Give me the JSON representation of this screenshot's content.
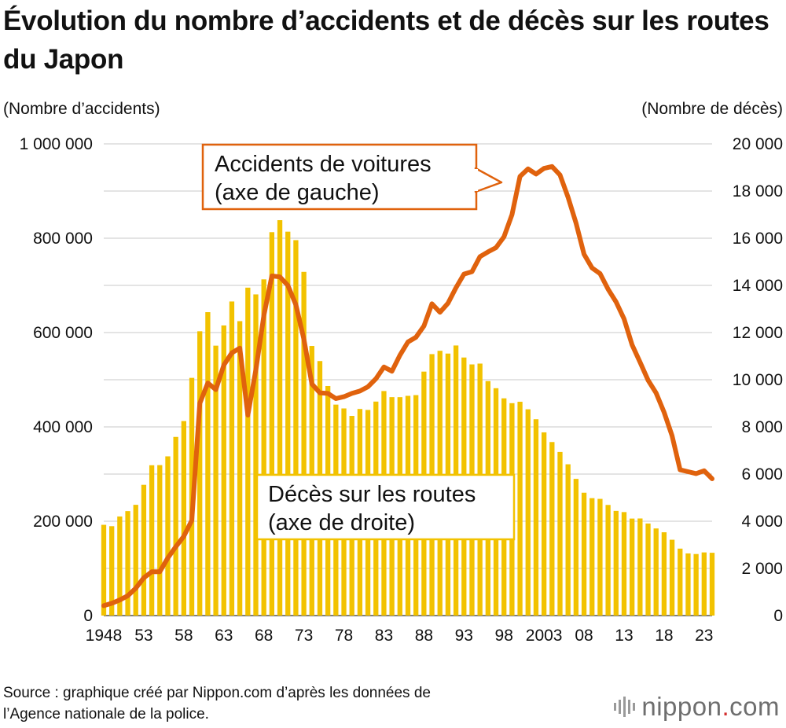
{
  "header": {
    "title": "Évolution du nombre d’accidents et de décès sur les routes du Japon",
    "left_axis_unit": "(Nombre d’accidents)",
    "right_axis_unit": "(Nombre de décès)"
  },
  "footer": {
    "source_line1": "Source : graphique créé par Nippon.com d’après les données de",
    "source_line2": "l’Agence nationale de la police.",
    "logo_main": "nippon",
    "logo_dot": ".",
    "logo_suffix": "com"
  },
  "colors": {
    "bars": "#f2c200",
    "line": "#e0620d",
    "grid": "#c8c8c8",
    "label_border_accidents": "#e0620d",
    "label_border_deaths": "#f2c200"
  },
  "chart_data": {
    "type": "bar+line",
    "x_tick_labels": [
      "1948",
      "53",
      "58",
      "63",
      "68",
      "73",
      "78",
      "83",
      "88",
      "93",
      "98",
      "2003",
      "08",
      "13",
      "18",
      "23"
    ],
    "x_tick_years": [
      1948,
      1953,
      1958,
      1963,
      1968,
      1973,
      1978,
      1983,
      1988,
      1993,
      1998,
      2003,
      2008,
      2013,
      2018,
      2023
    ],
    "left_axis": {
      "min": 0,
      "max": 1000000,
      "ticks": [
        "0",
        "200 000",
        "400 000",
        "600 000",
        "800 000",
        "1 000 000"
      ],
      "tick_values": [
        0,
        200000,
        400000,
        600000,
        800000,
        1000000
      ]
    },
    "right_axis": {
      "min": 0,
      "max": 20000,
      "ticks": [
        "0",
        "2 000",
        "4 000",
        "6 000",
        "8 000",
        "10 000",
        "12 000",
        "14 000",
        "16 000",
        "18 000",
        "20 000"
      ],
      "tick_values": [
        0,
        2000,
        4000,
        6000,
        8000,
        10000,
        12000,
        14000,
        16000,
        18000,
        20000
      ]
    },
    "grid": true,
    "years": [
      1948,
      1949,
      1950,
      1951,
      1952,
      1953,
      1954,
      1955,
      1956,
      1957,
      1958,
      1959,
      1960,
      1961,
      1962,
      1963,
      1964,
      1965,
      1966,
      1967,
      1968,
      1969,
      1970,
      1971,
      1972,
      1973,
      1974,
      1975,
      1976,
      1977,
      1978,
      1979,
      1980,
      1981,
      1982,
      1983,
      1984,
      1985,
      1986,
      1987,
      1988,
      1989,
      1990,
      1991,
      1992,
      1993,
      1994,
      1995,
      1996,
      1997,
      1998,
      1999,
      2000,
      2001,
      2002,
      2003,
      2004,
      2005,
      2006,
      2007,
      2008,
      2009,
      2010,
      2011,
      2012,
      2013,
      2014,
      2015,
      2016,
      2017,
      2018,
      2019,
      2020,
      2021,
      2022,
      2023,
      2024
    ],
    "series": [
      {
        "name": "Décès sur les routes",
        "label_line2": "(axe de droite)",
        "axis": "right",
        "kind": "bar",
        "values": [
          3848,
          3790,
          4202,
          4429,
          4696,
          5544,
          6374,
          6379,
          6751,
          7575,
          8248,
          10079,
          12055,
          12865,
          11445,
          12301,
          13318,
          12484,
          13904,
          13618,
          14256,
          16257,
          16765,
          16278,
          15918,
          14574,
          11432,
          10792,
          9734,
          8945,
          8783,
          8466,
          8760,
          8719,
          9073,
          9520,
          9262,
          9261,
          9317,
          9347,
          10344,
          11086,
          11227,
          11109,
          11452,
          10942,
          10649,
          10684,
          9942,
          9640,
          9211,
          9006,
          9066,
          8747,
          8326,
          7768,
          7358,
          6937,
          6415,
          5796,
          5209,
          4979,
          4948,
          4691,
          4438,
          4388,
          4113,
          4117,
          3904,
          3694,
          3532,
          3215,
          2839,
          2636,
          2610,
          2678,
          2663
        ]
      },
      {
        "name": "Accidents de voitures",
        "label_line2": "(axe de gauche)",
        "axis": "left",
        "kind": "line",
        "values": [
          21000,
          26000,
          33000,
          42000,
          58000,
          80000,
          93000,
          93000,
          122000,
          146000,
          168000,
          202000,
          450000,
          493000,
          479000,
          531000,
          557000,
          567000,
          425000,
          521000,
          636000,
          720000,
          718000,
          700000,
          659000,
          586000,
          491000,
          472000,
          471000,
          460000,
          464000,
          471000,
          476000,
          485000,
          502000,
          527000,
          518000,
          552000,
          580000,
          590000,
          614000,
          661000,
          643000,
          662000,
          695000,
          724000,
          729000,
          761000,
          771000,
          780000,
          803000,
          850000,
          931000,
          947000,
          936000,
          948000,
          952000,
          934000,
          887000,
          832000,
          766000,
          737000,
          725000,
          692000,
          665000,
          629000,
          574000,
          537000,
          499000,
          472000,
          431000,
          381000,
          309000,
          305000,
          301000,
          307000,
          290000
        ]
      }
    ]
  }
}
